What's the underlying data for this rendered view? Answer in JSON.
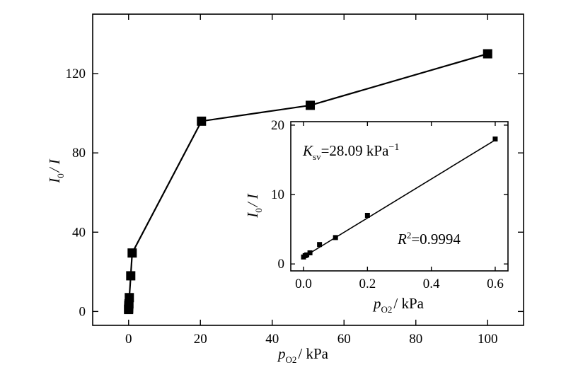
{
  "chart_data": [
    {
      "type": "line",
      "xlabel_var": "p",
      "xlabel_sub": "O2",
      "xlabel_unit": "/ kPa",
      "ylabel_num": "I",
      "ylabel_sub": "0",
      "ylabel_den": "/ I",
      "xlim": [
        -10,
        110
      ],
      "ylim": [
        -7,
        150
      ],
      "x_ticks": [
        0,
        20,
        40,
        60,
        80,
        100
      ],
      "y_ticks": [
        0,
        40,
        80,
        120
      ],
      "series": [
        {
          "marker": "square",
          "x": [
            0,
            0.02,
            0.05,
            0.1,
            0.2,
            0.6,
            1,
            20.3,
            50.6,
            100
          ],
          "y": [
            1,
            1.6,
            2.8,
            3.8,
            7,
            18,
            29.5,
            96,
            104,
            130
          ]
        }
      ]
    },
    {
      "type": "scatter",
      "inset": true,
      "xlabel_var": "p",
      "xlabel_sub": "O2",
      "xlabel_unit": "/ kPa",
      "ylabel_num": "I",
      "ylabel_sub": "0",
      "ylabel_den": "/ I",
      "xlim": [
        -0.04,
        0.64
      ],
      "ylim": [
        -1,
        20.5
      ],
      "x_ticks": [
        "0.0",
        "0.2",
        "0.4",
        "0.6"
      ],
      "y_ticks": [
        0,
        10,
        20
      ],
      "series": [
        {
          "marker": "square",
          "x": [
            0,
            0.005,
            0.01,
            0.02,
            0.05,
            0.1,
            0.2,
            0.6
          ],
          "y": [
            1,
            1.2,
            1.3,
            1.6,
            2.8,
            3.8,
            7,
            18
          ]
        }
      ],
      "fit": {
        "slope": 28.09,
        "intercept": 1.0,
        "x_range": [
          0,
          0.6
        ]
      },
      "annotations": {
        "ksv_var": "K",
        "ksv_sub": "sv",
        "ksv_value": "=28.09 kPa",
        "ksv_sup": "−1",
        "r2_var": "R",
        "r2_sup": "2",
        "r2_value": "=0.9994"
      }
    }
  ]
}
